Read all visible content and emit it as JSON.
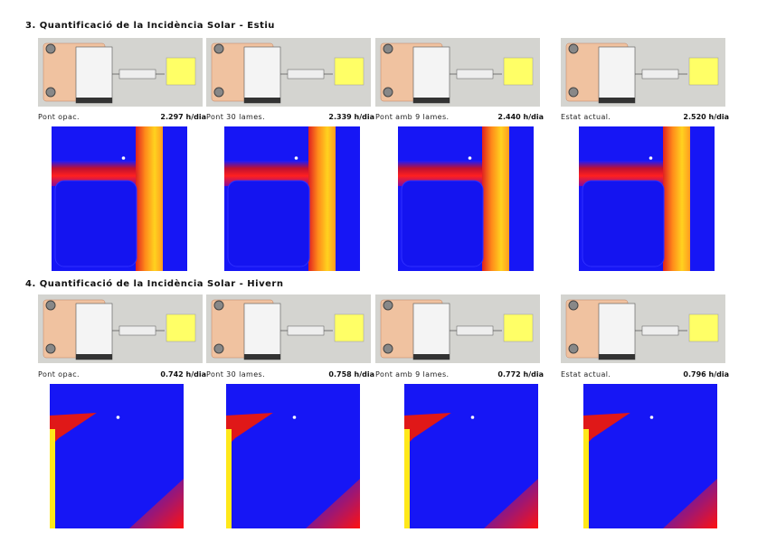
{
  "sections": [
    {
      "title": "3. Quantificació de la Incidència Solar - Estiu",
      "panels": [
        {
          "label": "Pont opac.",
          "value": "2.297 h/dia"
        },
        {
          "label": "Pont 30 lames.",
          "value": "2.339 h/dia"
        },
        {
          "label": "Pont amb 9 lames.",
          "value": "2.440 h/dia"
        },
        {
          "label": "Estat actual.",
          "value": "2.520 h/dia"
        }
      ]
    },
    {
      "title": "4. Quantificació de la Incidència Solar - Hivern",
      "panels": [
        {
          "label": "Pont opac.",
          "value": "0.742 h/dia"
        },
        {
          "label": "Pont 30 lames.",
          "value": "0.758 h/dia"
        },
        {
          "label": "Pont amb 9 lames.",
          "value": "0.772 h/dia"
        },
        {
          "label": "Estat actual.",
          "value": "0.796 h/dia"
        }
      ]
    }
  ]
}
